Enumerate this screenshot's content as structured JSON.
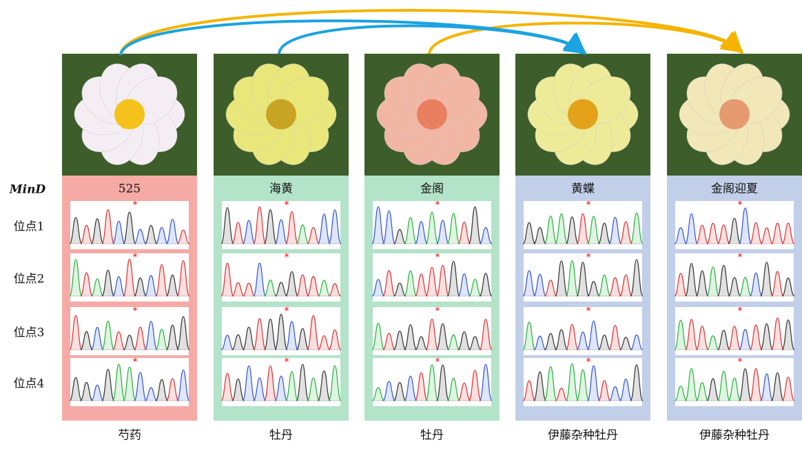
{
  "header_label": "MinD",
  "sites": [
    "位点1",
    "位点2",
    "位点3",
    "位点4"
  ],
  "columns": [
    {
      "name": "525",
      "species": "芍药"
    },
    {
      "name": "海黄",
      "species": "牡丹"
    },
    {
      "name": "金阁",
      "species": "牡丹"
    },
    {
      "name": "黄蝶",
      "species": "伊藤杂种牡丹"
    },
    {
      "name": "金阁迎夏",
      "species": "伊藤杂种牡丹"
    }
  ]
}
